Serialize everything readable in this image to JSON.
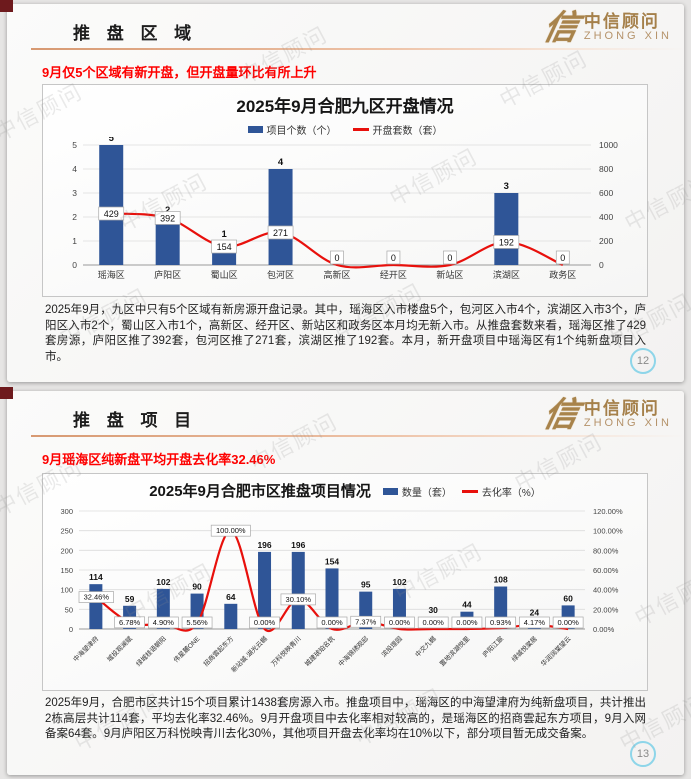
{
  "watermark": "中信顾问",
  "colors": {
    "bar": "#2f5597",
    "line": "#e8100c",
    "accent_red": "#fe0000",
    "gold": "#a5804a",
    "grid": "#dcdcdc"
  },
  "slides": [
    {
      "header": {
        "title": "推 盘 区 域"
      },
      "logo": {
        "glyph": "信",
        "name": "中信顾问",
        "name_en": "ZHONG XIN"
      },
      "subtitle": "9月仅5个区域有新开盘，但开盘量环比有所上升",
      "paragraph": "2025年9月，九区中只有5个区域有新房源开盘记录。其中，瑶海区入市楼盘5个，包河区入市4个，滨湖区入市3个，庐阳区入市2个，蜀山区入市1个，高新区、经开区、新站区和政务区本月均无新入市。从推盘套数来看，瑶海区推了429套房源，庐阳区推了392套，包河区推了271套，滨湖区推了192套。本月，新开盘项目中瑶海区有1个纯新盘项目入市。",
      "page_number": "12"
    },
    {
      "header": {
        "title": "推 盘 项 目"
      },
      "logo": {
        "glyph": "信",
        "name": "中信顾问",
        "name_en": "ZHONG XIN"
      },
      "subtitle": "9月瑶海区纯新盘平均开盘去化率32.46%",
      "paragraph": "2025年9月，合肥市区共计15个项目累计1438套房源入市。推盘项目中，瑶海区的中海望津府为纯新盘项目，共计推出2栋高层共计114套，平均去化率32.46%。9月开盘项目中去化率相对较高的，是瑶海区的招商雲起东方项目，9月入网备案64套。9月庐阳区万科悦映青川去化30%，其他项目开盘去化率均在10%以下，部分项目暂无成交备案。",
      "page_number": "13"
    }
  ],
  "chart_data": [
    {
      "type": "bar+line",
      "title": "2025年9月合肥九区开盘情况",
      "categories": [
        "瑶海区",
        "庐阳区",
        "蜀山区",
        "包河区",
        "高新区",
        "经开区",
        "新站区",
        "滨湖区",
        "政务区"
      ],
      "series": [
        {
          "name": "项目个数（个）",
          "type": "bar",
          "axis": "left",
          "values": [
            5,
            2,
            1,
            4,
            0,
            0,
            0,
            3,
            0
          ]
        },
        {
          "name": "开盘套数（套）",
          "type": "line",
          "axis": "right",
          "values": [
            429,
            392,
            154,
            271,
            0,
            0,
            0,
            192,
            0
          ],
          "labels": [
            "429",
            "392",
            "154",
            "271",
            "0",
            "0",
            "0",
            "192",
            "0"
          ]
        }
      ],
      "left_axis": {
        "min": 0,
        "max": 5,
        "ticks": [
          "0",
          "1",
          "2",
          "3",
          "4",
          "5"
        ]
      },
      "right_axis": {
        "min": 0,
        "max": 1000,
        "ticks": [
          "0",
          "200",
          "400",
          "600",
          "800",
          "1000"
        ]
      },
      "legend_position": "top",
      "grid": true
    },
    {
      "type": "bar+line",
      "title": "2025年9月合肥市区推盘项目情况",
      "categories": [
        "中海望津府",
        "城投观澜赋",
        "绿城桂语朝阳",
        "伟星麓ONE",
        "招商雲起东方",
        "新站城·湖光云樾",
        "万科悦映青川",
        "城建琥珀名筑",
        "中海锦绣观邸",
        "滨投璟园",
        "中交九樾",
        "置地滨湖悦里",
        "庐阳江宸",
        "绿城悦棠居",
        "华润润棠望云"
      ],
      "series": [
        {
          "name": "数量（套）",
          "type": "bar",
          "axis": "left",
          "values": [
            114,
            59,
            102,
            90,
            64,
            196,
            196,
            154,
            95,
            102,
            30,
            44,
            108,
            24,
            60
          ]
        },
        {
          "name": "去化率（%）",
          "type": "line",
          "axis": "right",
          "values": [
            32.46,
            6.78,
            4.9,
            5.56,
            100,
            0,
            30.1,
            0,
            7.37,
            0,
            0,
            0,
            0.93,
            4.17,
            0
          ],
          "labels": [
            "32.46%",
            "6.78%",
            "4.90%",
            "5.56%",
            "100.00%",
            "0.00%",
            "30.10%",
            "0.00%",
            "7.37%",
            "0.00%",
            "0.00%",
            "0.00%",
            "0.93%",
            "4.17%",
            "0.00%"
          ]
        }
      ],
      "left_axis": {
        "min": 0,
        "max": 300,
        "ticks": [
          "0",
          "50",
          "100",
          "150",
          "200",
          "250",
          "300"
        ]
      },
      "right_axis": {
        "min": 0,
        "max": 120,
        "ticks": [
          "0.00%",
          "20.00%",
          "40.00%",
          "60.00%",
          "80.00%",
          "100.00%",
          "120.00%"
        ]
      },
      "legend_position": "title-row",
      "grid": true
    }
  ]
}
